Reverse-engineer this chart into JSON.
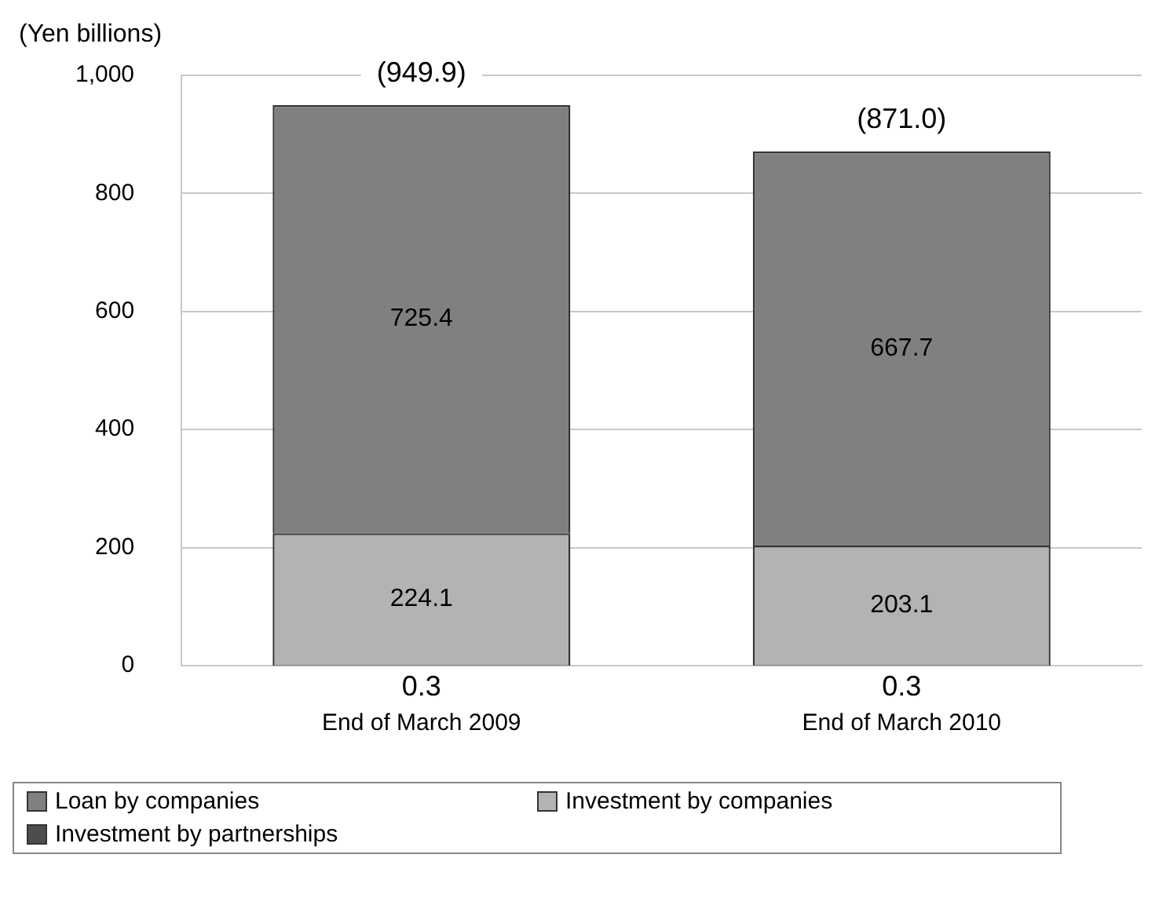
{
  "chart_data": {
    "type": "bar",
    "ylabel": "(Yen billions)",
    "categories": [
      "End of March 2009",
      "End of March 2010"
    ],
    "stacked": true,
    "series": [
      {
        "name": "Investment by partnerships",
        "color": "#4d4d4d",
        "values": [
          0.3,
          0.3
        ]
      },
      {
        "name": "Investment by companies",
        "color": "#b3b3b3",
        "values": [
          224.1,
          203.1
        ]
      },
      {
        "name": "Loan by companies",
        "color": "#808080",
        "values": [
          725.4,
          667.7
        ]
      }
    ],
    "ylim": [
      0,
      1000
    ],
    "yticks": [
      0,
      200,
      400,
      600,
      800,
      {
        "value": 1000,
        "label": "1,000"
      }
    ],
    "grid": "y",
    "legend": "bottom",
    "data_labels": true,
    "totals": [
      "(949.9)",
      "(871.0)"
    ]
  }
}
